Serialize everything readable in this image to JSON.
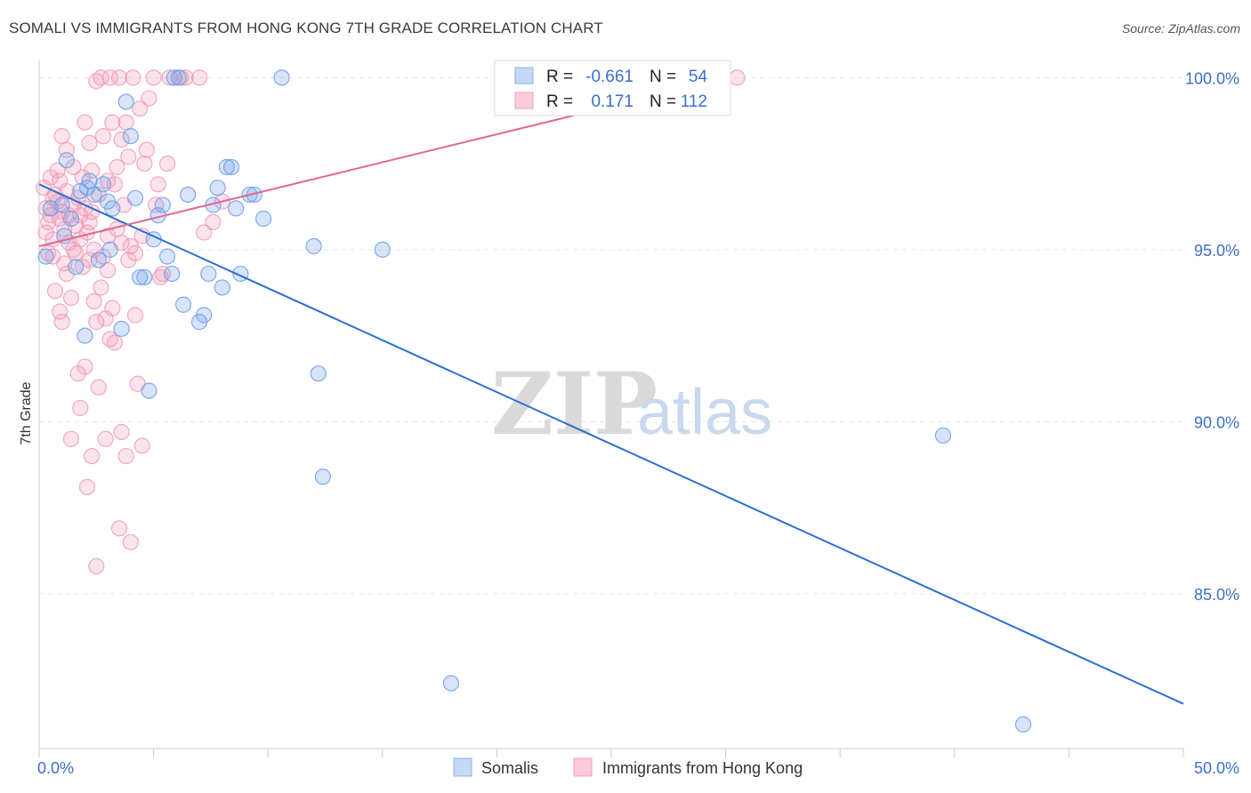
{
  "title": "SOMALI VS IMMIGRANTS FROM HONG KONG 7TH GRADE CORRELATION CHART",
  "source": "Source: ZipAtlas.com",
  "watermark": {
    "zip": "ZIP",
    "atlas": "atlas"
  },
  "chart_data": {
    "type": "scatter",
    "xlabel": "",
    "ylabel": "7th Grade",
    "xlim": [
      0,
      50
    ],
    "ylim": [
      80.5,
      100.5
    ],
    "x_tick_labels": [
      "0.0%",
      "50.0%"
    ],
    "y_ticks": [
      85,
      90,
      95,
      100
    ],
    "y_tick_labels": [
      "85.0%",
      "90.0%",
      "95.0%",
      "100.0%"
    ],
    "grid": true,
    "legend_position": "top-center",
    "colors": {
      "somalis": "#6f9ee8",
      "hongkong": "#f09ab6",
      "somalis_line": "#2b6fd0",
      "hongkong_line": "#e06890",
      "value_text": "#3a6fc8",
      "label_text": "#222222"
    },
    "stats": [
      {
        "series": "Somalis",
        "r_label": "R =",
        "r_value": "-0.661",
        "n_label": "N =",
        "n_value": "54"
      },
      {
        "series": "Immigrants from Hong Kong",
        "r_label": "R =",
        "r_value": "0.171",
        "n_label": "N =",
        "n_value": "112"
      }
    ],
    "series": [
      {
        "name": "Somalis",
        "trend": {
          "x": [
            0,
            50
          ],
          "y": [
            96.9,
            81.8
          ]
        },
        "points": [
          [
            0.3,
            94.8
          ],
          [
            1,
            96.3
          ],
          [
            1.2,
            97.6
          ],
          [
            1.4,
            95.9
          ],
          [
            1.6,
            94.5
          ],
          [
            1.8,
            96.7
          ],
          [
            2,
            92.5
          ],
          [
            2.2,
            97.0
          ],
          [
            2.4,
            96.6
          ],
          [
            2.6,
            94.7
          ],
          [
            2.8,
            96.9
          ],
          [
            3,
            96.4
          ],
          [
            3.2,
            96.2
          ],
          [
            3.6,
            92.7
          ],
          [
            3.8,
            99.3
          ],
          [
            4,
            98.3
          ],
          [
            4.2,
            96.5
          ],
          [
            4.4,
            94.2
          ],
          [
            4.6,
            94.2
          ],
          [
            4.8,
            90.9
          ],
          [
            5,
            95.3
          ],
          [
            5.2,
            96.0
          ],
          [
            5.4,
            96.3
          ],
          [
            5.6,
            94.8
          ],
          [
            5.8,
            94.3
          ],
          [
            5.9,
            100.0
          ],
          [
            6.1,
            100.0
          ],
          [
            6.3,
            93.4
          ],
          [
            6.5,
            96.6
          ],
          [
            7,
            92.9
          ],
          [
            7.2,
            93.1
          ],
          [
            7.4,
            94.3
          ],
          [
            7.6,
            96.3
          ],
          [
            7.8,
            96.8
          ],
          [
            8,
            93.9
          ],
          [
            8.2,
            97.4
          ],
          [
            8.4,
            97.4
          ],
          [
            8.6,
            96.2
          ],
          [
            8.8,
            94.3
          ],
          [
            9.2,
            96.6
          ],
          [
            9.4,
            96.6
          ],
          [
            9.8,
            95.9
          ],
          [
            10.6,
            100.0
          ],
          [
            12,
            95.1
          ],
          [
            12.2,
            91.4
          ],
          [
            12.4,
            88.4
          ],
          [
            15,
            95.0
          ],
          [
            18,
            82.4
          ],
          [
            39.5,
            89.6
          ],
          [
            43,
            81.2
          ],
          [
            0.5,
            96.2
          ],
          [
            1.1,
            95.4
          ],
          [
            2.1,
            96.8
          ],
          [
            3.1,
            95.0
          ]
        ]
      },
      {
        "name": "Immigrants from Hong Kong",
        "trend": {
          "x": [
            0,
            29.5
          ],
          "y": [
            95.1,
            99.9
          ]
        },
        "points": [
          [
            0.2,
            96.8
          ],
          [
            0.3,
            96.2
          ],
          [
            0.4,
            95.8
          ],
          [
            0.5,
            97.1
          ],
          [
            0.5,
            96.0
          ],
          [
            0.6,
            95.3
          ],
          [
            0.6,
            94.8
          ],
          [
            0.7,
            96.6
          ],
          [
            0.7,
            93.8
          ],
          [
            0.8,
            97.3
          ],
          [
            0.8,
            96.4
          ],
          [
            0.9,
            95.9
          ],
          [
            0.9,
            93.2
          ],
          [
            1.0,
            98.3
          ],
          [
            1.0,
            96.1
          ],
          [
            1.1,
            95.6
          ],
          [
            1.1,
            94.6
          ],
          [
            1.2,
            97.9
          ],
          [
            1.2,
            96.7
          ],
          [
            1.3,
            96.0
          ],
          [
            1.3,
            95.2
          ],
          [
            1.4,
            93.6
          ],
          [
            1.4,
            89.5
          ],
          [
            1.5,
            97.4
          ],
          [
            1.5,
            96.3
          ],
          [
            1.6,
            95.7
          ],
          [
            1.6,
            94.9
          ],
          [
            1.7,
            96.5
          ],
          [
            1.7,
            91.4
          ],
          [
            1.8,
            96.0
          ],
          [
            1.8,
            95.3
          ],
          [
            1.8,
            90.4
          ],
          [
            1.9,
            97.1
          ],
          [
            1.9,
            94.5
          ],
          [
            2.0,
            98.7
          ],
          [
            2.0,
            96.2
          ],
          [
            2.0,
            91.6
          ],
          [
            2.1,
            95.5
          ],
          [
            2.1,
            88.1
          ],
          [
            2.2,
            98.1
          ],
          [
            2.2,
            94.7
          ],
          [
            2.3,
            97.3
          ],
          [
            2.3,
            96.1
          ],
          [
            2.3,
            89.0
          ],
          [
            2.4,
            95.0
          ],
          [
            2.4,
            93.5
          ],
          [
            2.5,
            99.9
          ],
          [
            2.5,
            92.9
          ],
          [
            2.5,
            85.8
          ],
          [
            2.6,
            96.6
          ],
          [
            2.6,
            91.0
          ],
          [
            2.7,
            100.0
          ],
          [
            2.8,
            98.3
          ],
          [
            2.8,
            94.8
          ],
          [
            2.9,
            93.0
          ],
          [
            2.9,
            89.5
          ],
          [
            3.0,
            97.0
          ],
          [
            3.0,
            95.4
          ],
          [
            3.1,
            92.4
          ],
          [
            3.1,
            100.0
          ],
          [
            3.2,
            98.7
          ],
          [
            3.2,
            93.3
          ],
          [
            3.3,
            96.9
          ],
          [
            3.3,
            92.3
          ],
          [
            3.4,
            97.4
          ],
          [
            3.4,
            95.6
          ],
          [
            3.5,
            100.0
          ],
          [
            3.5,
            86.9
          ],
          [
            3.6,
            98.2
          ],
          [
            3.6,
            89.7
          ],
          [
            3.7,
            96.3
          ],
          [
            3.8,
            98.7
          ],
          [
            3.8,
            89.0
          ],
          [
            3.9,
            97.7
          ],
          [
            3.9,
            94.7
          ],
          [
            4.0,
            95.1
          ],
          [
            4.0,
            86.5
          ],
          [
            4.1,
            100.0
          ],
          [
            4.2,
            93.1
          ],
          [
            4.3,
            91.1
          ],
          [
            4.4,
            99.1
          ],
          [
            4.5,
            95.4
          ],
          [
            4.5,
            89.3
          ],
          [
            4.6,
            97.5
          ],
          [
            4.7,
            97.9
          ],
          [
            4.8,
            99.4
          ],
          [
            5.0,
            100.0
          ],
          [
            5.1,
            96.3
          ],
          [
            5.2,
            96.9
          ],
          [
            5.4,
            94.3
          ],
          [
            5.6,
            97.5
          ],
          [
            5.7,
            100.0
          ],
          [
            6.2,
            100.0
          ],
          [
            6.4,
            100.0
          ],
          [
            7.0,
            100.0
          ],
          [
            7.2,
            95.5
          ],
          [
            7.6,
            95.8
          ],
          [
            8.0,
            96.4
          ],
          [
            30.5,
            100.0
          ],
          [
            0.3,
            95.5
          ],
          [
            0.4,
            94.9
          ],
          [
            0.6,
            96.5
          ],
          [
            0.9,
            97.0
          ],
          [
            1.2,
            94.3
          ],
          [
            1.5,
            95.0
          ],
          [
            2.2,
            95.8
          ],
          [
            3.0,
            94.4
          ],
          [
            3.6,
            95.2
          ],
          [
            4.2,
            94.9
          ],
          [
            1.0,
            92.9
          ],
          [
            2.7,
            93.9
          ],
          [
            5.3,
            94.2
          ]
        ]
      }
    ]
  },
  "legend": {
    "items": [
      {
        "label": "Somalis"
      },
      {
        "label": "Immigrants from Hong Kong"
      }
    ]
  }
}
